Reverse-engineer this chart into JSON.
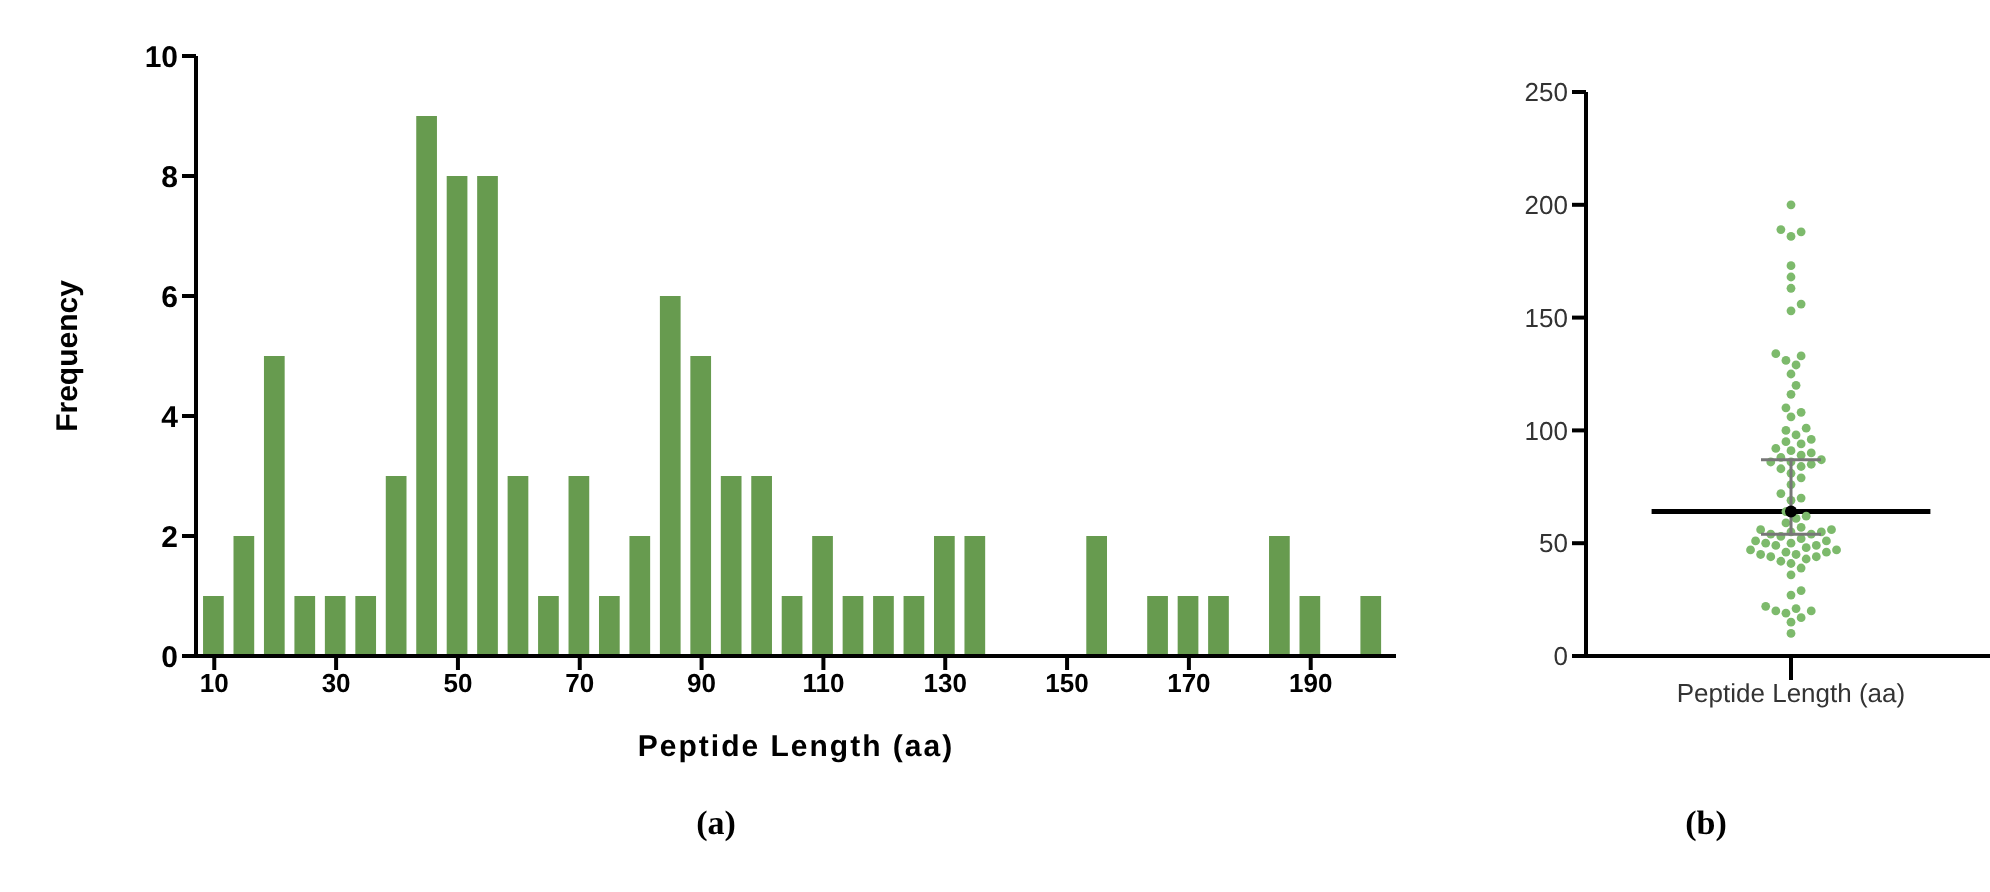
{
  "chart_data": [
    {
      "type": "histogram",
      "xlabel": "Peptide Length (aa)",
      "ylabel": "Frequency",
      "bins": [
        7.5,
        12.5,
        17.5,
        22.5,
        27.5,
        32.5,
        37.5,
        42.5,
        47.5,
        52.5,
        57.5,
        62.5,
        67.5,
        72.5,
        77.5,
        82.5,
        87.5,
        92.5,
        97.5,
        102.5,
        107.5,
        112.5,
        117.5,
        122.5,
        127.5,
        132.5,
        137.5,
        142.5,
        147.5,
        152.5,
        157.5,
        162.5,
        167.5,
        172.5,
        177.5,
        182.5,
        187.5,
        192.5,
        197.5,
        202.5
      ],
      "values": [
        1,
        2,
        5,
        1,
        1,
        1,
        3,
        9,
        8,
        8,
        3,
        1,
        3,
        1,
        2,
        6,
        5,
        3,
        3,
        1,
        2,
        1,
        1,
        1,
        2,
        2,
        0,
        0,
        0,
        2,
        0,
        1,
        1,
        1,
        0,
        2,
        1,
        0,
        1
      ],
      "color": "#679b4f",
      "xlim": [
        7,
        204
      ],
      "xticks": [
        10,
        30,
        50,
        70,
        90,
        110,
        130,
        150,
        170,
        190
      ],
      "ylim": [
        0,
        10
      ],
      "yticks": [
        0,
        2,
        4,
        6,
        8,
        10
      ],
      "annotations": [
        "(a)"
      ]
    },
    {
      "type": "scatter",
      "categories": [
        "Peptide Length (aa)"
      ],
      "series": [
        {
          "color": "#7dba6c",
          "x": [
            "Peptide Length (aa)",
            "Peptide Length (aa)",
            "Peptide Length (aa)",
            "Peptide Length (aa)",
            "Peptide Length (aa)",
            "Peptide Length (aa)",
            "Peptide Length (aa)",
            "Peptide Length (aa)",
            "Peptide Length (aa)",
            "Peptide Length (aa)",
            "Peptide Length (aa)",
            "Peptide Length (aa)",
            "Peptide Length (aa)",
            "Peptide Length (aa)",
            "Peptide Length (aa)",
            "Peptide Length (aa)",
            "Peptide Length (aa)",
            "Peptide Length (aa)",
            "Peptide Length (aa)",
            "Peptide Length (aa)",
            "Peptide Length (aa)",
            "Peptide Length (aa)",
            "Peptide Length (aa)",
            "Peptide Length (aa)",
            "Peptide Length (aa)",
            "Peptide Length (aa)",
            "Peptide Length (aa)",
            "Peptide Length (aa)",
            "Peptide Length (aa)",
            "Peptide Length (aa)",
            "Peptide Length (aa)",
            "Peptide Length (aa)",
            "Peptide Length (aa)",
            "Peptide Length (aa)",
            "Peptide Length (aa)",
            "Peptide Length (aa)",
            "Peptide Length (aa)",
            "Peptide Length (aa)",
            "Peptide Length (aa)",
            "Peptide Length (aa)",
            "Peptide Length (aa)",
            "Peptide Length (aa)",
            "Peptide Length (aa)",
            "Peptide Length (aa)",
            "Peptide Length (aa)",
            "Peptide Length (aa)",
            "Peptide Length (aa)",
            "Peptide Length (aa)",
            "Peptide Length (aa)",
            "Peptide Length (aa)",
            "Peptide Length (aa)",
            "Peptide Length (aa)",
            "Peptide Length (aa)",
            "Peptide Length (aa)",
            "Peptide Length (aa)",
            "Peptide Length (aa)",
            "Peptide Length (aa)",
            "Peptide Length (aa)",
            "Peptide Length (aa)",
            "Peptide Length (aa)",
            "Peptide Length (aa)",
            "Peptide Length (aa)",
            "Peptide Length (aa)",
            "Peptide Length (aa)",
            "Peptide Length (aa)",
            "Peptide Length (aa)",
            "Peptide Length (aa)",
            "Peptide Length (aa)",
            "Peptide Length (aa)",
            "Peptide Length (aa)",
            "Peptide Length (aa)",
            "Peptide Length (aa)",
            "Peptide Length (aa)",
            "Peptide Length (aa)",
            "Peptide Length (aa)",
            "Peptide Length (aa)",
            "Peptide Length (aa)",
            "Peptide Length (aa)",
            "Peptide Length (aa)",
            "Peptide Length (aa)",
            "Peptide Length (aa)",
            "Peptide Length (aa)",
            "Peptide Length (aa)",
            "Peptide Length (aa)",
            "Peptide Length (aa)"
          ],
          "values": [
            10,
            15,
            17,
            19,
            20,
            20,
            21,
            22,
            27,
            29,
            36,
            39,
            41,
            42,
            43,
            44,
            44,
            45,
            45,
            46,
            46,
            47,
            47,
            48,
            49,
            49,
            50,
            50,
            51,
            51,
            52,
            53,
            54,
            54,
            55,
            55,
            56,
            56,
            57,
            59,
            61,
            62,
            64,
            69,
            70,
            72,
            76,
            79,
            81,
            83,
            84,
            85,
            86,
            86,
            87,
            88,
            89,
            90,
            91,
            92,
            94,
            95,
            96,
            98,
            100,
            101,
            106,
            108,
            110,
            116,
            120,
            125,
            129,
            131,
            133,
            134,
            153,
            156,
            163,
            168,
            173,
            186,
            188,
            189,
            200
          ]
        },
        {
          "type": "scatter",
          "color": "#000000",
          "x": [
            "Peptide Length (aa)"
          ],
          "values": [
            64
          ],
          "errors": [
            [
              54,
              87
            ]
          ],
          "marker": "circle"
        }
      ],
      "ref_lines": [
        {
          "axis": "y",
          "value": 64,
          "color": "#000000"
        }
      ],
      "ylim": [
        0,
        250
      ],
      "yticks": [
        0,
        50,
        100,
        150,
        200,
        250
      ],
      "annotations": [
        "(b)"
      ]
    }
  ]
}
